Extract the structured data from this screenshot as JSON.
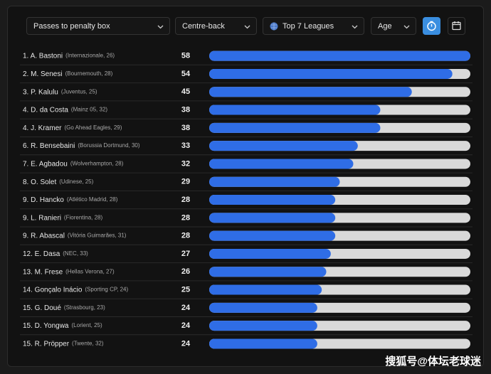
{
  "filters": [
    "Passes to penalty box",
    "Centre-back",
    "Top 7 Leagues",
    "Age"
  ],
  "chart_data": {
    "type": "bar",
    "orientation": "horizontal",
    "categories": [
      "1. A. Bastoni",
      "2. M. Senesi",
      "3. P. Kalulu",
      "4. D. da Costa",
      "4. J. Kramer",
      "6. R. Bensebaini",
      "7. E. Agbadou",
      "8. O. Solet",
      "9. D. Hancko",
      "9. L. Ranieri",
      "9. R. Abascal",
      "12. E. Dasa",
      "13. M. Frese",
      "14. Gonçalo Inácio",
      "15. G. Doué",
      "15. D. Yongwa",
      "15. R. Pröpper"
    ],
    "details": [
      "(Internazionale, 26)",
      "(Bournemouth, 28)",
      "(Juventus, 25)",
      "(Mainz 05, 32)",
      "(Go Ahead Eagles, 29)",
      "(Borussia Dortmund, 30)",
      "(Wolverhampton, 28)",
      "(Udinese, 25)",
      "(Atlético Madrid, 28)",
      "(Fiorentina, 28)",
      "(Vitória Guimarães, 31)",
      "(NEC, 33)",
      "(Hellas Verona, 27)",
      "(Sporting CP, 24)",
      "(Strasbourg, 23)",
      "(Lorient, 25)",
      "(Twente, 32)"
    ],
    "values": [
      58,
      54,
      45,
      38,
      38,
      33,
      32,
      29,
      28,
      28,
      28,
      27,
      26,
      25,
      24,
      24,
      24
    ],
    "color": "#2f6de6",
    "track_color": "#d9d9d9",
    "xlim": [
      0,
      58
    ]
  },
  "watermark": "搜狐号@体坛老球迷"
}
